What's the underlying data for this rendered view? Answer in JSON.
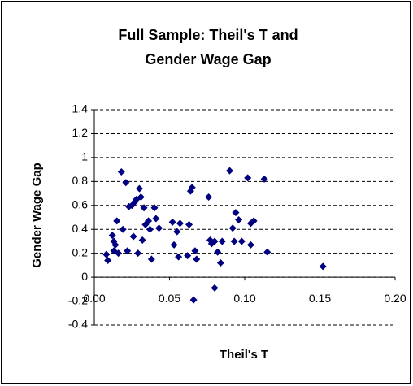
{
  "chart_data": {
    "type": "scatter",
    "title": [
      "Full Sample: Theil's T and",
      "Gender Wage Gap"
    ],
    "x_label": "Theil's T",
    "y_label": "Gender Wage Gap",
    "color": "#000080",
    "grid": true,
    "xlim": [
      0,
      0.2
    ],
    "xticks": [
      {
        "value": 0,
        "label": "0.00"
      },
      {
        "value": 0.05,
        "label": "0.05"
      },
      {
        "value": 0.1,
        "label": "0.10"
      },
      {
        "value": 0.15,
        "label": "0.15"
      },
      {
        "value": 0.2,
        "label": "0.20"
      }
    ],
    "ylim": [
      -0.4,
      1.4
    ],
    "yticks": [
      -0.4,
      -0.2,
      0,
      0.2,
      0.4,
      0.6,
      0.8,
      1,
      1.2,
      1.4
    ],
    "x": [
      0.008,
      0.009,
      0.012,
      0.013,
      0.013,
      0.014,
      0.015,
      0.016,
      0.018,
      0.019,
      0.021,
      0.022,
      0.023,
      0.025,
      0.026,
      0.027,
      0.028,
      0.029,
      0.03,
      0.031,
      0.032,
      0.033,
      0.034,
      0.036,
      0.037,
      0.038,
      0.04,
      0.041,
      0.043,
      0.052,
      0.053,
      0.055,
      0.056,
      0.057,
      0.062,
      0.063,
      0.064,
      0.065,
      0.066,
      0.067,
      0.068,
      0.076,
      0.077,
      0.078,
      0.08,
      0.08,
      0.082,
      0.084,
      0.085,
      0.09,
      0.092,
      0.093,
      0.094,
      0.096,
      0.098,
      0.102,
      0.104,
      0.104,
      0.106,
      0.113,
      0.115,
      0.152
    ],
    "values": [
      0.19,
      0.14,
      0.35,
      0.3,
      0.22,
      0.27,
      0.47,
      0.2,
      0.88,
      0.4,
      0.79,
      0.22,
      0.59,
      0.6,
      0.34,
      0.63,
      0.65,
      0.2,
      0.74,
      0.67,
      0.31,
      0.58,
      0.44,
      0.47,
      0.4,
      0.15,
      0.58,
      0.49,
      0.41,
      0.46,
      0.27,
      0.38,
      0.17,
      0.45,
      0.18,
      0.44,
      0.72,
      0.75,
      -0.19,
      0.22,
      0.15,
      0.67,
      0.31,
      0.28,
      -0.09,
      0.3,
      0.21,
      0.12,
      0.3,
      0.89,
      0.41,
      0.3,
      0.54,
      0.48,
      0.3,
      0.83,
      0.27,
      0.45,
      0.47,
      0.82,
      0.21,
      0.09
    ]
  }
}
